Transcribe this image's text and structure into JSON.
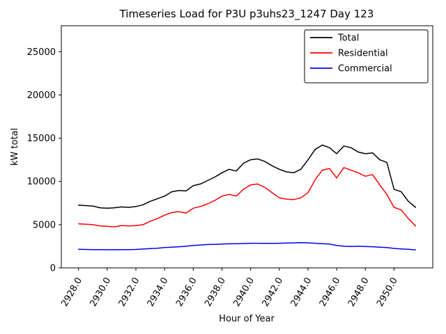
{
  "page": {
    "background": "#ffffff"
  },
  "chart_data": {
    "type": "line",
    "title": "Timeseries Load for P3U p3uhs23_1247  Day 123",
    "xlabel": "Hour of Year",
    "ylabel": "kW total",
    "xlim": [
      2926.8,
      2952.7
    ],
    "ylim": [
      0,
      28000
    ],
    "grid": false,
    "legend_position": "upper right",
    "x_ticks": [
      2928,
      2930,
      2932,
      2934,
      2936,
      2938,
      2940,
      2942,
      2944,
      2946,
      2948,
      2950
    ],
    "x_tick_labels": [
      "2928.0",
      "2930.0",
      "2932.0",
      "2934.0",
      "2936.0",
      "2938.0",
      "2940.0",
      "2942.0",
      "2944.0",
      "2946.0",
      "2948.0",
      "2950.0"
    ],
    "y_ticks": [
      0,
      5000,
      10000,
      15000,
      20000,
      25000
    ],
    "y_tick_labels": [
      "0",
      "5000",
      "10000",
      "15000",
      "20000",
      "25000"
    ],
    "x": [
      2928.0,
      2928.5,
      2929.0,
      2929.5,
      2930.0,
      2930.5,
      2931.0,
      2931.5,
      2932.0,
      2932.5,
      2933.0,
      2933.5,
      2934.0,
      2934.5,
      2935.0,
      2935.5,
      2936.0,
      2936.5,
      2937.0,
      2937.5,
      2938.0,
      2938.5,
      2939.0,
      2939.5,
      2940.0,
      2940.5,
      2941.0,
      2941.5,
      2942.0,
      2942.5,
      2943.0,
      2943.5,
      2944.0,
      2944.5,
      2945.0,
      2945.5,
      2946.0,
      2946.5,
      2947.0,
      2947.5,
      2948.0,
      2948.5,
      2949.0,
      2949.5,
      2950.0,
      2950.5,
      2951.0,
      2951.5
    ],
    "series": [
      {
        "name": "Total",
        "color": "#000000",
        "values": [
          7250,
          7200,
          7150,
          6950,
          6900,
          6950,
          7050,
          7000,
          7100,
          7300,
          7700,
          8000,
          8300,
          8800,
          8950,
          8900,
          9500,
          9700,
          10100,
          10500,
          11000,
          11400,
          11200,
          12100,
          12500,
          12600,
          12300,
          11800,
          11400,
          11100,
          11000,
          11400,
          12500,
          13700,
          14200,
          13900,
          13200,
          14100,
          13900,
          13400,
          13200,
          13300,
          12500,
          12200,
          9100,
          8800,
          7700,
          7000
        ]
      },
      {
        "name": "Residential",
        "color": "#ff0000",
        "values": [
          5100,
          5050,
          5000,
          4850,
          4800,
          4750,
          4900,
          4850,
          4900,
          5000,
          5400,
          5700,
          6100,
          6400,
          6500,
          6350,
          6900,
          7100,
          7400,
          7800,
          8300,
          8500,
          8300,
          9100,
          9600,
          9700,
          9300,
          8700,
          8100,
          7950,
          7900,
          8100,
          8700,
          10200,
          11300,
          11500,
          10400,
          11600,
          11300,
          11000,
          10600,
          10800,
          9600,
          8500,
          7000,
          6700,
          5700,
          4850
        ]
      },
      {
        "name": "Commercial",
        "color": "#0000ff",
        "values": [
          2150,
          2130,
          2120,
          2110,
          2100,
          2100,
          2110,
          2120,
          2130,
          2180,
          2230,
          2280,
          2350,
          2400,
          2450,
          2500,
          2600,
          2650,
          2700,
          2720,
          2750,
          2780,
          2800,
          2820,
          2850,
          2850,
          2840,
          2830,
          2850,
          2870,
          2900,
          2920,
          2900,
          2850,
          2800,
          2750,
          2600,
          2500,
          2480,
          2500,
          2480,
          2450,
          2400,
          2350,
          2250,
          2200,
          2150,
          2080
        ]
      }
    ]
  }
}
